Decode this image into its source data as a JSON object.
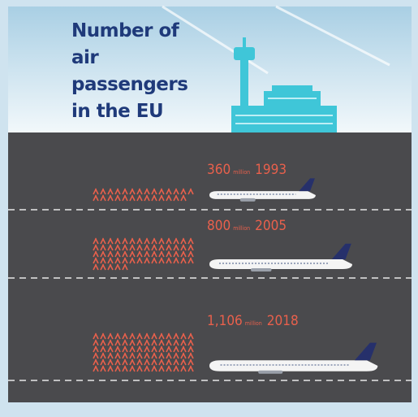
{
  "chart_data": {
    "type": "pictogram",
    "title": "Number of air passengers in the EU",
    "unit": "million",
    "categories": [
      "1993",
      "2005",
      "2018"
    ],
    "values": [
      360,
      800,
      1106
    ],
    "value_labels": [
      "360",
      "800",
      "1,106"
    ],
    "icon_color": "#e8604c",
    "plane_tail_color": "#26306b"
  }
}
